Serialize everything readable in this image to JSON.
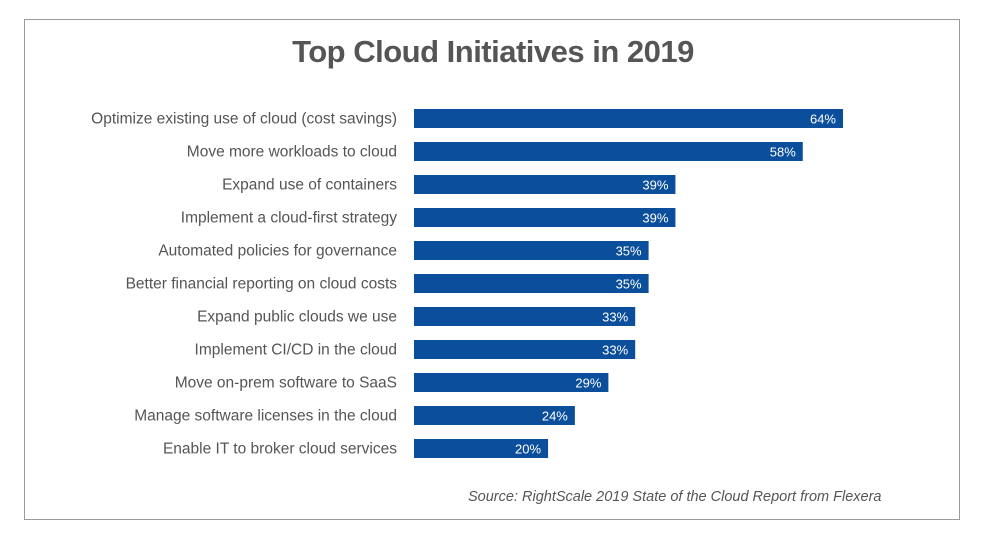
{
  "chart_data": {
    "type": "bar",
    "orientation": "horizontal",
    "title": "Top Cloud Initiatives in 2019",
    "categories": [
      "Optimize existing use of cloud (cost savings)",
      "Move more workloads to cloud",
      "Expand use of containers",
      "Implement a cloud-first strategy",
      "Automated policies for governance",
      "Better financial reporting on cloud costs",
      "Expand public clouds we use",
      "Implement CI/CD in the cloud",
      "Move on-prem software to SaaS",
      "Manage software licenses in the cloud",
      "Enable IT to broker cloud services"
    ],
    "values": [
      64,
      58,
      39,
      39,
      35,
      35,
      33,
      33,
      29,
      24,
      20
    ],
    "value_labels": [
      "64%",
      "58%",
      "39%",
      "39%",
      "35%",
      "35%",
      "33%",
      "33%",
      "29%",
      "24%",
      "20%"
    ],
    "unit": "%",
    "xlabel": "",
    "ylabel": "",
    "xlim": [
      0,
      64
    ],
    "grid": false,
    "legend": "none",
    "bar_color": "#0b4f9c",
    "label_color": "#555555",
    "source": "Source: RightScale 2019 State of the Cloud Report from Flexera"
  }
}
